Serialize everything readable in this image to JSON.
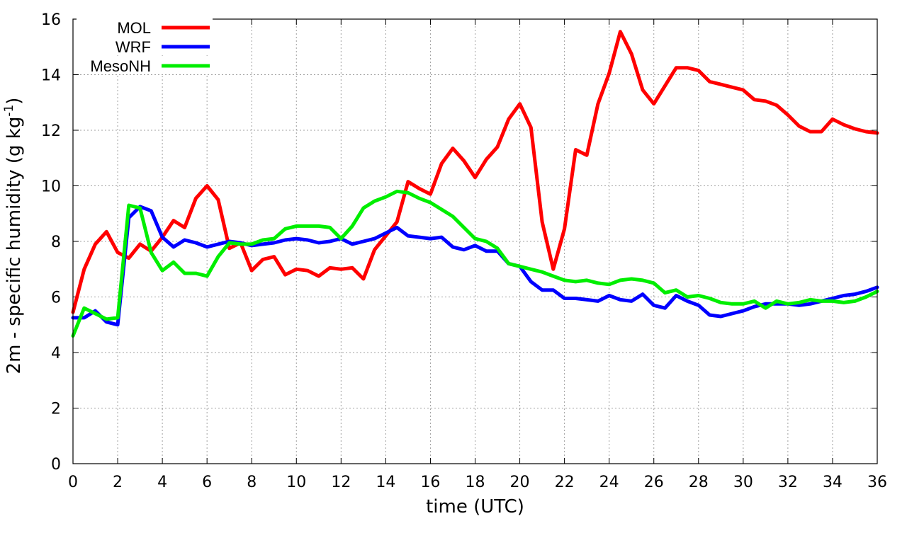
{
  "chart_data": {
    "type": "line",
    "xlabel": "time (UTC)",
    "ylabel_main": "2m - specific humidity (g kg",
    "ylabel_sup": "-1",
    "ylabel_close": ")",
    "xlim": [
      0,
      36
    ],
    "ylim": [
      0,
      16
    ],
    "xticks": [
      0,
      2,
      4,
      6,
      8,
      10,
      12,
      14,
      16,
      18,
      20,
      22,
      24,
      26,
      28,
      30,
      32,
      34,
      36
    ],
    "yticks": [
      0,
      2,
      4,
      6,
      8,
      10,
      12,
      14,
      16
    ],
    "grid": true,
    "legend_position": "top-left",
    "series": [
      {
        "name": "MOL",
        "color": "#ff0000",
        "x": [
          0,
          0.5,
          1,
          1.5,
          2,
          2.5,
          3,
          3.5,
          4,
          4.5,
          5,
          5.5,
          6,
          6.5,
          7,
          7.5,
          8,
          8.5,
          9,
          9.5,
          10,
          10.5,
          11,
          11.5,
          12,
          12.5,
          13,
          13.5,
          14,
          14.5,
          15,
          15.5,
          16,
          16.5,
          17,
          17.5,
          18,
          18.5,
          19,
          19.5,
          20,
          20.5,
          21,
          21.5,
          22,
          22.5,
          23,
          23.5,
          24,
          24.5,
          25,
          25.5,
          26,
          26.5,
          27,
          27.5,
          28,
          28.5,
          29,
          29.5,
          30,
          30.5,
          31,
          31.5,
          32,
          32.5,
          33,
          33.5,
          34,
          34.5,
          35,
          35.5,
          36
        ],
        "y": [
          5.45,
          7.0,
          7.9,
          8.35,
          7.6,
          7.4,
          7.9,
          7.65,
          8.15,
          8.75,
          8.5,
          9.55,
          10.0,
          9.5,
          7.75,
          7.95,
          6.95,
          7.35,
          7.45,
          6.8,
          7.0,
          6.95,
          6.75,
          7.05,
          7.0,
          7.05,
          6.65,
          7.7,
          8.2,
          8.7,
          10.15,
          9.9,
          9.7,
          10.8,
          11.35,
          10.9,
          10.3,
          10.95,
          11.4,
          12.4,
          12.95,
          12.1,
          8.7,
          7.0,
          8.45,
          11.3,
          11.1,
          12.95,
          14.05,
          15.55,
          14.75,
          13.45,
          12.95,
          13.6,
          14.25,
          14.25,
          14.15,
          13.75,
          13.65,
          13.55,
          13.45,
          13.1,
          13.05,
          12.9,
          12.55,
          12.15,
          11.95,
          11.95,
          12.4,
          12.2,
          12.05,
          11.95,
          11.9
        ]
      },
      {
        "name": "WRF",
        "color": "#0000ff",
        "x": [
          0,
          0.5,
          1,
          1.5,
          2,
          2.5,
          3,
          3.5,
          4,
          4.5,
          5,
          5.5,
          6,
          6.5,
          7,
          7.5,
          8,
          8.5,
          9,
          9.5,
          10,
          10.5,
          11,
          11.5,
          12,
          12.5,
          13,
          13.5,
          14,
          14.5,
          15,
          15.5,
          16,
          16.5,
          17,
          17.5,
          18,
          18.5,
          19,
          19.5,
          20,
          20.5,
          21,
          21.5,
          22,
          22.5,
          23,
          23.5,
          24,
          24.5,
          25,
          25.5,
          26,
          26.5,
          27,
          27.5,
          28,
          28.5,
          29,
          29.5,
          30,
          30.5,
          31,
          31.5,
          32,
          32.5,
          33,
          33.5,
          34,
          34.5,
          35,
          35.5,
          36
        ],
        "y": [
          5.25,
          5.25,
          5.5,
          5.1,
          5.0,
          8.85,
          9.25,
          9.1,
          8.15,
          7.8,
          8.05,
          7.95,
          7.8,
          7.9,
          8.0,
          7.95,
          7.85,
          7.9,
          7.95,
          8.05,
          8.1,
          8.05,
          7.95,
          8.0,
          8.1,
          7.9,
          8.0,
          8.1,
          8.3,
          8.5,
          8.2,
          8.15,
          8.1,
          8.15,
          7.8,
          7.7,
          7.85,
          7.65,
          7.65,
          7.2,
          7.1,
          6.55,
          6.25,
          6.25,
          5.95,
          5.95,
          5.9,
          5.85,
          6.05,
          5.9,
          5.85,
          6.1,
          5.7,
          5.6,
          6.05,
          5.85,
          5.7,
          5.35,
          5.3,
          5.4,
          5.5,
          5.65,
          5.75,
          5.75,
          5.75,
          5.7,
          5.75,
          5.85,
          5.95,
          6.05,
          6.1,
          6.2,
          6.35
        ]
      },
      {
        "name": "MesoNH",
        "color": "#00ee00",
        "x": [
          0,
          0.5,
          1,
          1.5,
          2,
          2.5,
          3,
          3.5,
          4,
          4.5,
          5,
          5.5,
          6,
          6.5,
          7,
          7.5,
          8,
          8.5,
          9,
          9.5,
          10,
          10.5,
          11,
          11.5,
          12,
          12.5,
          13,
          13.5,
          14,
          14.5,
          15,
          15.5,
          16,
          16.5,
          17,
          17.5,
          18,
          18.5,
          19,
          19.5,
          20,
          20.5,
          21,
          21.5,
          22,
          22.5,
          23,
          23.5,
          24,
          24.5,
          25,
          25.5,
          26,
          26.5,
          27,
          27.5,
          28,
          28.5,
          29,
          29.5,
          30,
          30.5,
          31,
          31.5,
          32,
          32.5,
          33,
          33.5,
          34,
          34.5,
          35,
          35.5,
          36
        ],
        "y": [
          4.6,
          5.6,
          5.4,
          5.2,
          5.25,
          9.3,
          9.2,
          7.6,
          6.95,
          7.25,
          6.85,
          6.85,
          6.75,
          7.45,
          7.95,
          7.9,
          7.9,
          8.05,
          8.1,
          8.45,
          8.55,
          8.55,
          8.55,
          8.5,
          8.1,
          8.55,
          9.2,
          9.45,
          9.6,
          9.8,
          9.75,
          9.55,
          9.4,
          9.15,
          8.9,
          8.5,
          8.1,
          8.0,
          7.75,
          7.2,
          7.1,
          7.0,
          6.9,
          6.75,
          6.6,
          6.55,
          6.6,
          6.5,
          6.45,
          6.6,
          6.65,
          6.6,
          6.5,
          6.15,
          6.25,
          6.0,
          6.05,
          5.95,
          5.8,
          5.75,
          5.75,
          5.85,
          5.6,
          5.85,
          5.75,
          5.8,
          5.9,
          5.85,
          5.85,
          5.8,
          5.85,
          6.0,
          6.2
        ]
      }
    ]
  }
}
